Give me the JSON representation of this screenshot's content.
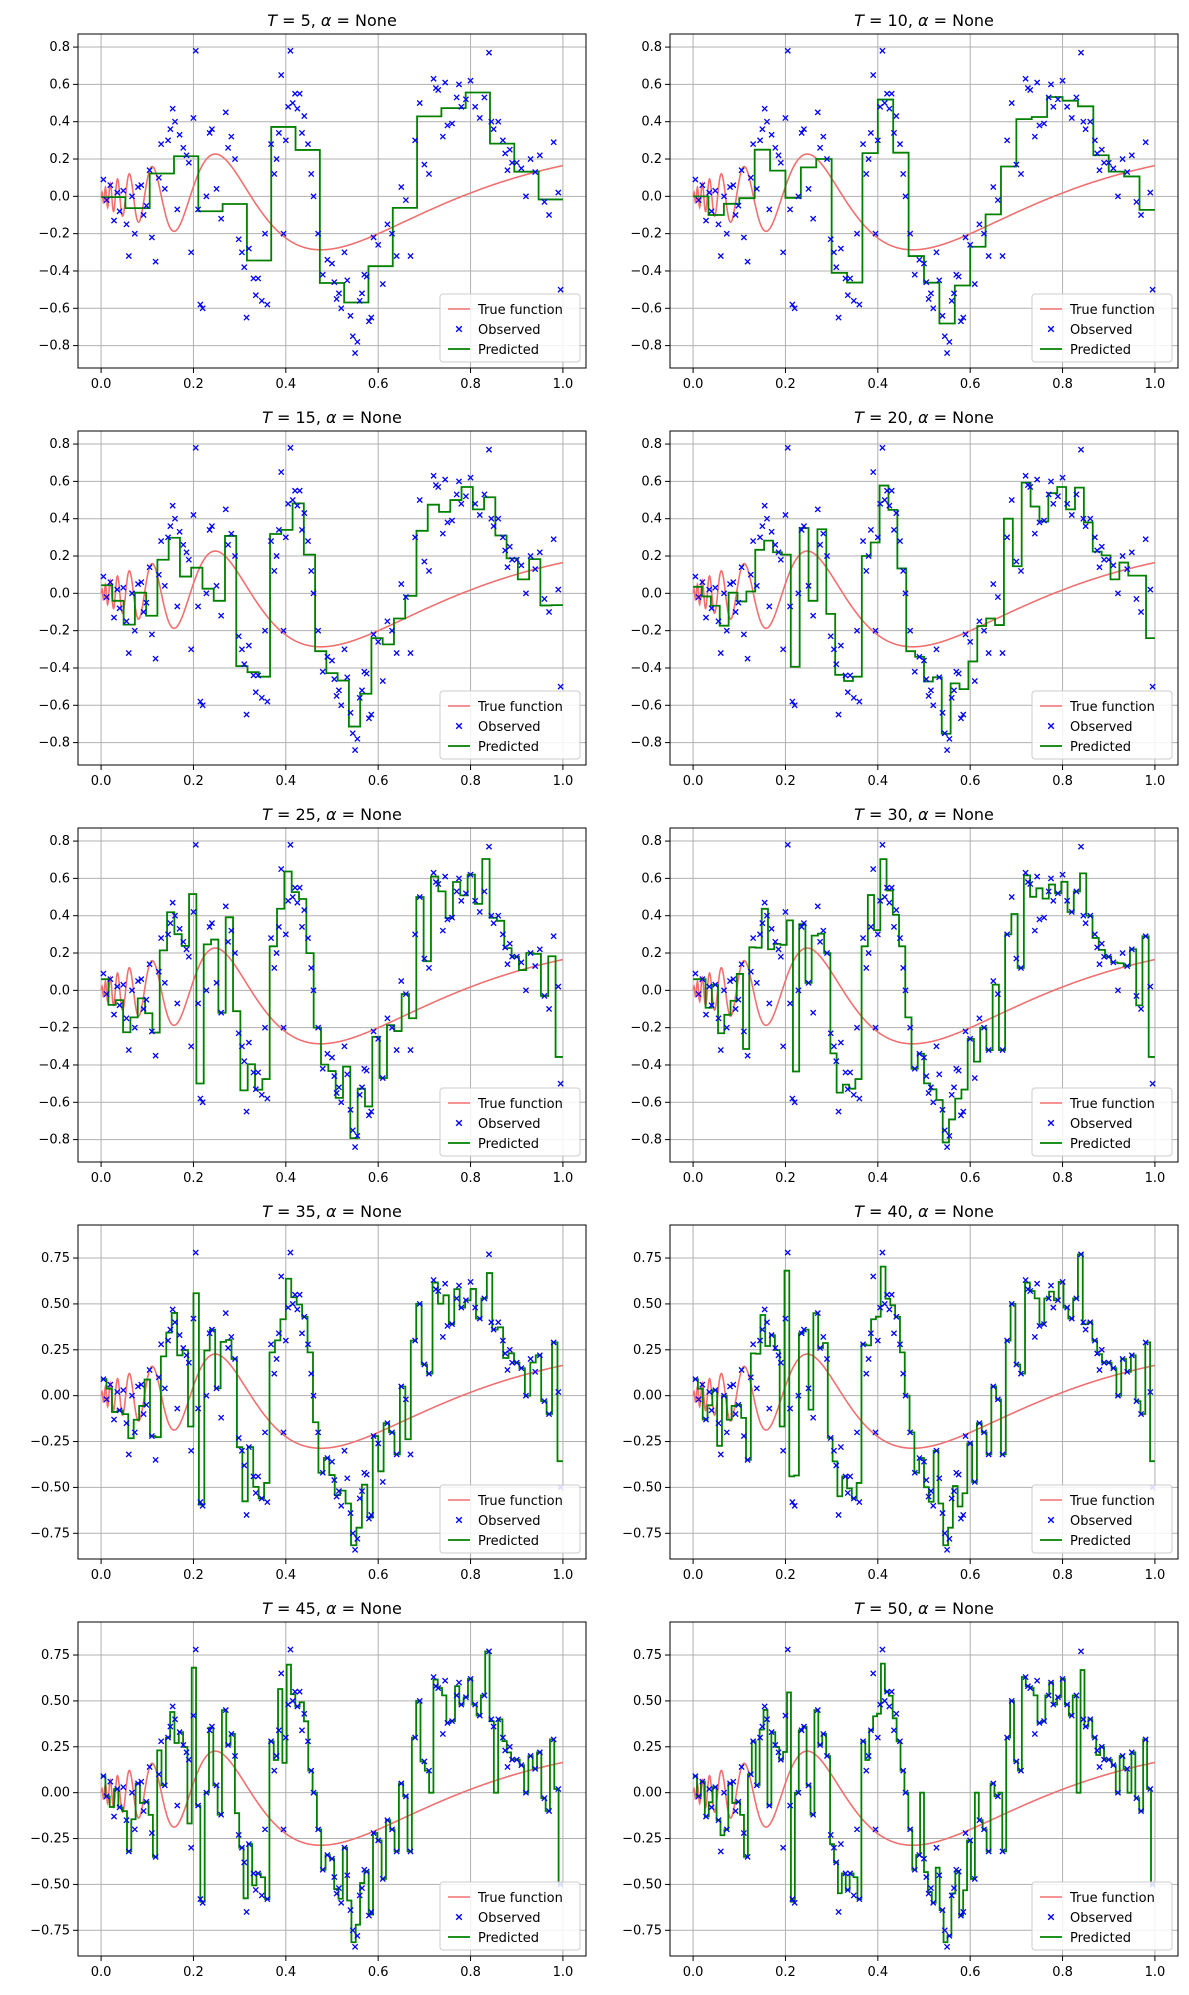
{
  "figure": {
    "layout": "5 rows x 2 columns",
    "background": "#ffffff"
  },
  "colors": {
    "true_function": "#f07070",
    "observed": "#0000ff",
    "predicted": "#008000",
    "grid": "#b0b0b0",
    "axes": "#000000"
  },
  "legend": {
    "placement": "lower-right",
    "labels": [
      "True function",
      "Observed",
      "Predicted"
    ]
  },
  "chart_data": [
    {
      "type": "line",
      "title": "T = 5, α = None",
      "T": "5",
      "alpha": "None",
      "xlim": [
        -0.05,
        1.05
      ],
      "ylim": [
        -0.92,
        0.87
      ],
      "yticks": [
        "-0.8",
        "-0.6",
        "-0.4",
        "-0.2",
        "0.0",
        "0.2",
        "0.4",
        "0.6",
        "0.8"
      ],
      "xticks": [
        "0.0",
        "0.2",
        "0.4",
        "0.6",
        "0.8",
        "1.0"
      ],
      "grid": true,
      "legend": "lower-right"
    },
    {
      "type": "line",
      "title": "T = 10, α = None",
      "T": "10",
      "alpha": "None",
      "xlim": [
        -0.05,
        1.05
      ],
      "ylim": [
        -0.92,
        0.87
      ],
      "yticks": [
        "-0.8",
        "-0.6",
        "-0.4",
        "-0.2",
        "0.0",
        "0.2",
        "0.4",
        "0.6",
        "0.8"
      ],
      "xticks": [
        "0.0",
        "0.2",
        "0.4",
        "0.6",
        "0.8",
        "1.0"
      ],
      "grid": true,
      "legend": "lower-right"
    },
    {
      "type": "line",
      "title": "T = 15, α = None",
      "T": "15",
      "alpha": "None",
      "xlim": [
        -0.05,
        1.05
      ],
      "ylim": [
        -0.92,
        0.87
      ],
      "yticks": [
        "-0.8",
        "-0.6",
        "-0.4",
        "-0.2",
        "0.0",
        "0.2",
        "0.4",
        "0.6",
        "0.8"
      ],
      "xticks": [
        "0.0",
        "0.2",
        "0.4",
        "0.6",
        "0.8",
        "1.0"
      ],
      "grid": true,
      "legend": "lower-right"
    },
    {
      "type": "line",
      "title": "T = 20, α = None",
      "T": "20",
      "alpha": "None",
      "xlim": [
        -0.05,
        1.05
      ],
      "ylim": [
        -0.92,
        0.87
      ],
      "yticks": [
        "-0.8",
        "-0.6",
        "-0.4",
        "-0.2",
        "0.0",
        "0.2",
        "0.4",
        "0.6",
        "0.8"
      ],
      "xticks": [
        "0.0",
        "0.2",
        "0.4",
        "0.6",
        "0.8",
        "1.0"
      ],
      "grid": true,
      "legend": "lower-right"
    },
    {
      "type": "line",
      "title": "T = 25, α = None",
      "T": "25",
      "alpha": "None",
      "xlim": [
        -0.05,
        1.05
      ],
      "ylim": [
        -0.92,
        0.87
      ],
      "yticks": [
        "-0.8",
        "-0.6",
        "-0.4",
        "-0.2",
        "0.0",
        "0.2",
        "0.4",
        "0.6",
        "0.8"
      ],
      "xticks": [
        "0.0",
        "0.2",
        "0.4",
        "0.6",
        "0.8",
        "1.0"
      ],
      "grid": true,
      "legend": "lower-right"
    },
    {
      "type": "line",
      "title": "T = 30, α = None",
      "T": "30",
      "alpha": "None",
      "xlim": [
        -0.05,
        1.05
      ],
      "ylim": [
        -0.92,
        0.87
      ],
      "yticks": [
        "-0.8",
        "-0.6",
        "-0.4",
        "-0.2",
        "0.0",
        "0.2",
        "0.4",
        "0.6",
        "0.8"
      ],
      "xticks": [
        "0.0",
        "0.2",
        "0.4",
        "0.6",
        "0.8",
        "1.0"
      ],
      "grid": true,
      "legend": "lower-right"
    },
    {
      "type": "line",
      "title": "T = 35, α = None",
      "T": "35",
      "alpha": "None",
      "xlim": [
        -0.05,
        1.05
      ],
      "ylim": [
        -0.89,
        0.93
      ],
      "yticks": [
        "-0.75",
        "-0.50",
        "-0.25",
        "0.00",
        "0.25",
        "0.50",
        "0.75"
      ],
      "xticks": [
        "0.0",
        "0.2",
        "0.4",
        "0.6",
        "0.8",
        "1.0"
      ],
      "grid": true,
      "legend": "lower-right"
    },
    {
      "type": "line",
      "title": "T = 40, α = None",
      "T": "40",
      "alpha": "None",
      "xlim": [
        -0.05,
        1.05
      ],
      "ylim": [
        -0.89,
        0.93
      ],
      "yticks": [
        "-0.75",
        "-0.50",
        "-0.25",
        "0.00",
        "0.25",
        "0.50",
        "0.75"
      ],
      "xticks": [
        "0.0",
        "0.2",
        "0.4",
        "0.6",
        "0.8",
        "1.0"
      ],
      "grid": true,
      "legend": "lower-right"
    },
    {
      "type": "line",
      "title": "T = 45, α = None",
      "T": "45",
      "alpha": "None",
      "xlim": [
        -0.05,
        1.05
      ],
      "ylim": [
        -0.89,
        0.93
      ],
      "yticks": [
        "-0.75",
        "-0.50",
        "-0.25",
        "0.00",
        "0.25",
        "0.50",
        "0.75"
      ],
      "xticks": [
        "0.0",
        "0.2",
        "0.4",
        "0.6",
        "0.8",
        "1.0"
      ],
      "grid": true,
      "legend": "lower-right"
    },
    {
      "type": "line",
      "title": "T = 50, α = None",
      "T": "50",
      "alpha": "None",
      "xlim": [
        -0.05,
        1.05
      ],
      "ylim": [
        -0.89,
        0.93
      ],
      "yticks": [
        "-0.75",
        "-0.50",
        "-0.25",
        "0.00",
        "0.25",
        "0.50",
        "0.75"
      ],
      "xticks": [
        "0.0",
        "0.2",
        "0.4",
        "0.6",
        "0.8",
        "1.0"
      ],
      "grid": true,
      "legend": "lower-right"
    }
  ],
  "series_shared": {
    "true_function": {
      "name": "True function",
      "formula_description": "y = 0.4·x^0.2·sin(9/(x+0.05)) style chirp, dense oscillations near x=0"
    },
    "observed": {
      "name": "Observed",
      "marker": "x",
      "points": [
        [
          0.005,
          0.09
        ],
        [
          0.012,
          -0.02
        ],
        [
          0.02,
          0.06
        ],
        [
          0.028,
          -0.13
        ],
        [
          0.035,
          0.02
        ],
        [
          0.04,
          -0.08
        ],
        [
          0.048,
          0.03
        ],
        [
          0.055,
          -0.15
        ],
        [
          0.06,
          -0.32
        ],
        [
          0.067,
          0.0
        ],
        [
          0.073,
          -0.2
        ],
        [
          0.08,
          0.05
        ],
        [
          0.087,
          0.06
        ],
        [
          0.092,
          -0.1
        ],
        [
          0.098,
          -0.05
        ],
        [
          0.105,
          0.14
        ],
        [
          0.11,
          -0.22
        ],
        [
          0.118,
          -0.35
        ],
        [
          0.125,
          0.1
        ],
        [
          0.13,
          0.28
        ],
        [
          0.138,
          0.04
        ],
        [
          0.145,
          0.3
        ],
        [
          0.15,
          0.36
        ],
        [
          0.155,
          0.47
        ],
        [
          0.16,
          0.4
        ],
        [
          0.165,
          -0.07
        ],
        [
          0.17,
          0.33
        ],
        [
          0.178,
          0.26
        ],
        [
          0.185,
          0.22
        ],
        [
          0.19,
          0.18
        ],
        [
          0.195,
          -0.3
        ],
        [
          0.2,
          0.42
        ],
        [
          0.205,
          0.78
        ],
        [
          0.21,
          -0.07
        ],
        [
          0.215,
          -0.58
        ],
        [
          0.22,
          -0.6
        ],
        [
          0.228,
          0.0
        ],
        [
          0.235,
          0.34
        ],
        [
          0.24,
          0.36
        ],
        [
          0.25,
          0.04
        ],
        [
          0.26,
          -0.12
        ],
        [
          0.27,
          0.45
        ],
        [
          0.275,
          0.26
        ],
        [
          0.282,
          0.32
        ],
        [
          0.29,
          0.2
        ],
        [
          0.298,
          -0.23
        ],
        [
          0.305,
          -0.3
        ],
        [
          0.31,
          -0.38
        ],
        [
          0.315,
          -0.65
        ],
        [
          0.32,
          -0.28
        ],
        [
          0.33,
          -0.44
        ],
        [
          0.335,
          -0.53
        ],
        [
          0.34,
          -0.44
        ],
        [
          0.348,
          -0.56
        ],
        [
          0.355,
          -0.2
        ],
        [
          0.36,
          -0.58
        ],
        [
          0.368,
          0.28
        ],
        [
          0.375,
          0.12
        ],
        [
          0.38,
          0.2
        ],
        [
          0.385,
          0.34
        ],
        [
          0.39,
          0.65
        ],
        [
          0.395,
          -0.2
        ],
        [
          0.4,
          0.3
        ],
        [
          0.405,
          0.48
        ],
        [
          0.41,
          0.78
        ],
        [
          0.415,
          0.5
        ],
        [
          0.42,
          0.55
        ],
        [
          0.425,
          0.47
        ],
        [
          0.43,
          0.55
        ],
        [
          0.435,
          0.34
        ],
        [
          0.44,
          0.43
        ],
        [
          0.448,
          0.28
        ],
        [
          0.455,
          0.12
        ],
        [
          0.46,
          0.0
        ],
        [
          0.47,
          -0.2
        ],
        [
          0.48,
          -0.42
        ],
        [
          0.49,
          -0.34
        ],
        [
          0.5,
          -0.36
        ],
        [
          0.505,
          -0.46
        ],
        [
          0.51,
          -0.55
        ],
        [
          0.515,
          -0.52
        ],
        [
          0.52,
          -0.6
        ],
        [
          0.527,
          -0.3
        ],
        [
          0.533,
          -0.45
        ],
        [
          0.54,
          -0.64
        ],
        [
          0.545,
          -0.75
        ],
        [
          0.55,
          -0.84
        ],
        [
          0.555,
          -0.78
        ],
        [
          0.56,
          -0.56
        ],
        [
          0.565,
          -0.52
        ],
        [
          0.57,
          -0.42
        ],
        [
          0.575,
          -0.43
        ],
        [
          0.58,
          -0.67
        ],
        [
          0.585,
          -0.65
        ],
        [
          0.59,
          -0.22
        ],
        [
          0.6,
          -0.26
        ],
        [
          0.61,
          -0.47
        ],
        [
          0.62,
          -0.15
        ],
        [
          0.63,
          -0.2
        ],
        [
          0.64,
          -0.32
        ],
        [
          0.65,
          0.05
        ],
        [
          0.66,
          -0.02
        ],
        [
          0.67,
          -0.32
        ],
        [
          0.68,
          0.3
        ],
        [
          0.69,
          0.5
        ],
        [
          0.7,
          0.17
        ],
        [
          0.71,
          0.12
        ],
        [
          0.72,
          0.63
        ],
        [
          0.725,
          0.58
        ],
        [
          0.73,
          0.57
        ],
        [
          0.74,
          0.32
        ],
        [
          0.745,
          0.61
        ],
        [
          0.75,
          0.38
        ],
        [
          0.76,
          0.39
        ],
        [
          0.77,
          0.53
        ],
        [
          0.775,
          0.6
        ],
        [
          0.78,
          0.48
        ],
        [
          0.79,
          0.52
        ],
        [
          0.8,
          0.62
        ],
        [
          0.81,
          0.48
        ],
        [
          0.82,
          0.42
        ],
        [
          0.83,
          0.53
        ],
        [
          0.84,
          0.77
        ],
        [
          0.845,
          0.4
        ],
        [
          0.85,
          0.36
        ],
        [
          0.86,
          0.4
        ],
        [
          0.87,
          0.3
        ],
        [
          0.875,
          0.23
        ],
        [
          0.88,
          0.14
        ],
        [
          0.885,
          0.25
        ],
        [
          0.89,
          0.18
        ],
        [
          0.9,
          0.18
        ],
        [
          0.91,
          0.15
        ],
        [
          0.92,
          0.0
        ],
        [
          0.93,
          0.2
        ],
        [
          0.94,
          0.13
        ],
        [
          0.95,
          0.22
        ],
        [
          0.96,
          -0.03
        ],
        [
          0.97,
          -0.1
        ],
        [
          0.98,
          0.29
        ],
        [
          0.99,
          0.02
        ],
        [
          0.995,
          -0.5
        ]
      ]
    },
    "predicted": {
      "name": "Predicted"
    }
  }
}
